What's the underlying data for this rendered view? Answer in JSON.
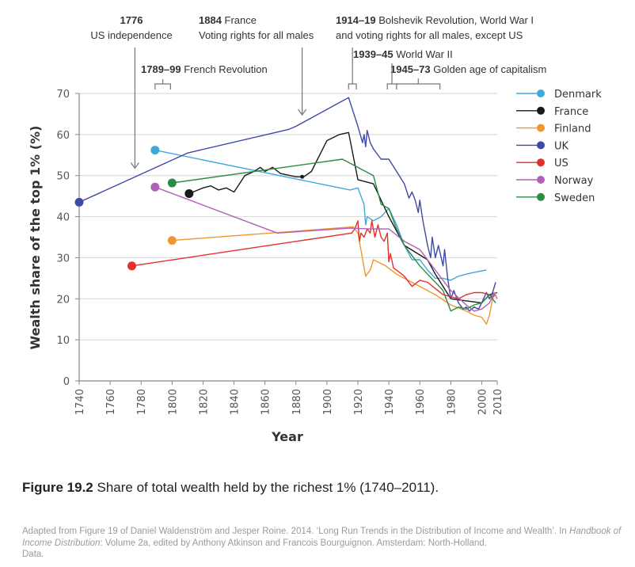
{
  "chart_data": {
    "type": "line",
    "title": "",
    "xlabel": "Year",
    "ylabel": "Wealth share of the top 1% (%)",
    "xlim": [
      1740,
      2010
    ],
    "ylim": [
      0,
      70
    ],
    "x_ticks": [
      "1740",
      "1760",
      "1780",
      "1800",
      "1820",
      "1840",
      "1860",
      "1880",
      "1900",
      "1920",
      "1940",
      "1960",
      "1980",
      "2000",
      "2010"
    ],
    "y_ticks": [
      "0",
      "10",
      "20",
      "30",
      "40",
      "50",
      "60",
      "70"
    ],
    "grid": "horizontal",
    "legend_position": "right",
    "annotations": [
      {
        "id": "us-independence",
        "bold": "1776",
        "text": "US independence",
        "year": 1776,
        "type": "arrow"
      },
      {
        "id": "france-voting",
        "bold": "1884 France",
        "text": "Voting rights for all males",
        "year": 1884,
        "type": "arrow"
      },
      {
        "id": "bolshevik",
        "bold": "1914–19",
        "text": "Bolshevik Revolution, World War I",
        "line2": "and voting rights for all males, except US",
        "range": [
          1914,
          1919
        ],
        "type": "bracket"
      },
      {
        "id": "french-revolution",
        "bold": "1789–99",
        "text": "French Revolution",
        "range": [
          1789,
          1799
        ],
        "type": "bracket"
      },
      {
        "id": "ww2",
        "bold": "1939–45",
        "text": "World War II",
        "range": [
          1939,
          1945
        ],
        "type": "bracket"
      },
      {
        "id": "golden-age",
        "bold": "1945–73",
        "text": "Golden age of capitalism",
        "range": [
          1945,
          1973
        ],
        "type": "bracket"
      }
    ],
    "series": [
      {
        "name": "Denmark",
        "color": "#3fa9dc",
        "points": [
          [
            1789,
            56.2
          ],
          [
            1915,
            46.5
          ],
          [
            1920,
            47
          ],
          [
            1924,
            43
          ],
          [
            1925,
            38
          ],
          [
            1926,
            40
          ],
          [
            1930,
            39
          ],
          [
            1935,
            40
          ],
          [
            1940,
            42
          ],
          [
            1945,
            38
          ],
          [
            1950,
            33
          ],
          [
            1955,
            29.5
          ],
          [
            1960,
            29.5
          ],
          [
            1965,
            27
          ],
          [
            1970,
            25
          ],
          [
            1975,
            25
          ],
          [
            1980,
            24.5
          ],
          [
            1985,
            25.5
          ],
          [
            1990,
            26
          ],
          [
            1996,
            26.5
          ],
          [
            2003,
            27
          ]
        ]
      },
      {
        "name": "France",
        "color": "#1a1a1a",
        "points": [
          [
            1811,
            45.6
          ],
          [
            1820,
            47
          ],
          [
            1825,
            47.5
          ],
          [
            1830,
            46.5
          ],
          [
            1835,
            47
          ],
          [
            1840,
            46
          ],
          [
            1847,
            50
          ],
          [
            1853,
            51
          ],
          [
            1857,
            52
          ],
          [
            1860,
            51
          ],
          [
            1865,
            52
          ],
          [
            1870,
            50.5
          ],
          [
            1880,
            49.7
          ],
          [
            1885,
            49.7
          ],
          [
            1890,
            51
          ],
          [
            1900,
            58.5
          ],
          [
            1908,
            60
          ],
          [
            1914,
            60.5
          ],
          [
            1920,
            49
          ],
          [
            1930,
            48
          ],
          [
            1940,
            40
          ],
          [
            1950,
            33
          ],
          [
            1965,
            29.5
          ],
          [
            1970,
            26
          ],
          [
            1975,
            23
          ],
          [
            1980,
            20
          ],
          [
            1990,
            19.5
          ],
          [
            2000,
            19
          ],
          [
            2005,
            21
          ],
          [
            2010,
            21.5
          ]
        ]
      },
      {
        "name": "Finland",
        "color": "#f0962e",
        "points": [
          [
            1800,
            34.2
          ],
          [
            1917,
            37.5
          ],
          [
            1920,
            36
          ],
          [
            1925,
            25.5
          ],
          [
            1928,
            27
          ],
          [
            1930,
            29.5
          ],
          [
            1938,
            28
          ],
          [
            1945,
            26
          ],
          [
            1950,
            25
          ],
          [
            1960,
            23
          ],
          [
            1970,
            21
          ],
          [
            1980,
            18.5
          ],
          [
            1990,
            17
          ],
          [
            1995,
            16
          ],
          [
            2000,
            15.5
          ],
          [
            2003,
            13.8
          ],
          [
            2005,
            16
          ],
          [
            2007,
            20
          ],
          [
            2009,
            21.5
          ]
        ]
      },
      {
        "name": "UK",
        "color": "#3f4aa6",
        "points": [
          [
            1740,
            43.5
          ],
          [
            1810,
            55.5
          ],
          [
            1875,
            61.2
          ],
          [
            1880,
            62
          ],
          [
            1914,
            69
          ],
          [
            1920,
            62
          ],
          [
            1923,
            58
          ],
          [
            1924,
            60
          ],
          [
            1925,
            57
          ],
          [
            1926,
            61
          ],
          [
            1928,
            58
          ],
          [
            1930,
            56.5
          ],
          [
            1935,
            54
          ],
          [
            1940,
            54
          ],
          [
            1945,
            51
          ],
          [
            1950,
            48
          ],
          [
            1953,
            44.5
          ],
          [
            1955,
            46
          ],
          [
            1957,
            44
          ],
          [
            1959,
            41
          ],
          [
            1960,
            44
          ],
          [
            1962,
            39
          ],
          [
            1965,
            33
          ],
          [
            1967,
            30
          ],
          [
            1968,
            35
          ],
          [
            1970,
            30
          ],
          [
            1972,
            33
          ],
          [
            1975,
            28
          ],
          [
            1976,
            32
          ],
          [
            1978,
            25
          ],
          [
            1980,
            20
          ],
          [
            1982,
            22
          ],
          [
            1985,
            19
          ],
          [
            1988,
            17.5
          ],
          [
            1990,
            18
          ],
          [
            1992,
            17
          ],
          [
            1995,
            18
          ],
          [
            1998,
            17.5
          ],
          [
            2000,
            19
          ],
          [
            2003,
            21.5
          ],
          [
            2005,
            20
          ],
          [
            2007,
            21.5
          ],
          [
            2009,
            24
          ]
        ]
      },
      {
        "name": "US",
        "color": "#e3302b",
        "points": [
          [
            1774,
            28
          ],
          [
            1916,
            36
          ],
          [
            1918,
            37
          ],
          [
            1920,
            39
          ],
          [
            1921,
            34
          ],
          [
            1922,
            36
          ],
          [
            1924,
            35
          ],
          [
            1926,
            37
          ],
          [
            1928,
            36
          ],
          [
            1929,
            39
          ],
          [
            1931,
            35
          ],
          [
            1933,
            38
          ],
          [
            1935,
            35
          ],
          [
            1937,
            34
          ],
          [
            1939,
            36
          ],
          [
            1940,
            29
          ],
          [
            1941,
            31
          ],
          [
            1943,
            27.5
          ],
          [
            1945,
            27
          ],
          [
            1950,
            25.5
          ],
          [
            1955,
            23
          ],
          [
            1960,
            24.5
          ],
          [
            1965,
            24
          ],
          [
            1970,
            22.5
          ],
          [
            1975,
            21
          ],
          [
            1980,
            20.5
          ],
          [
            1985,
            20
          ],
          [
            1990,
            21
          ],
          [
            1995,
            21.5
          ],
          [
            2000,
            21.5
          ],
          [
            2005,
            21
          ],
          [
            2007,
            20.5
          ],
          [
            2009,
            21
          ]
        ]
      },
      {
        "name": "Norway",
        "color": "#b25fb8",
        "points": [
          [
            1789,
            47.2
          ],
          [
            1868,
            36
          ],
          [
            1915,
            37.2
          ],
          [
            1928,
            37
          ],
          [
            1930,
            37
          ],
          [
            1940,
            37
          ],
          [
            1950,
            34
          ],
          [
            1960,
            32
          ],
          [
            1970,
            27
          ],
          [
            1980,
            22
          ],
          [
            1990,
            18.5
          ],
          [
            1995,
            17
          ],
          [
            2000,
            17.5
          ],
          [
            2005,
            19
          ],
          [
            2008,
            21.5
          ],
          [
            2010,
            20
          ]
        ]
      },
      {
        "name": "Sweden",
        "color": "#2d8b45",
        "points": [
          [
            1800,
            48.2
          ],
          [
            1910,
            54
          ],
          [
            1930,
            50
          ],
          [
            1935,
            43
          ],
          [
            1940,
            42
          ],
          [
            1945,
            37
          ],
          [
            1950,
            33
          ],
          [
            1960,
            28
          ],
          [
            1965,
            26
          ],
          [
            1970,
            24
          ],
          [
            1975,
            22
          ],
          [
            1980,
            17
          ],
          [
            1985,
            18
          ],
          [
            1990,
            17.5
          ],
          [
            1995,
            18.5
          ],
          [
            2000,
            19
          ],
          [
            2005,
            21
          ],
          [
            2007,
            20
          ],
          [
            2009,
            19
          ]
        ]
      }
    ]
  },
  "caption": {
    "label": "Figure 19.2",
    "text": " Share of total wealth held by the richest 1% (1740–2011)."
  },
  "source": {
    "line1": "Adapted from Figure 19 of Daniel Waldenström and Jesper Roine. 2014. ‘Long Run Trends in the Distribution of Income and Wealth’. In ",
    "italic": "Handbook of Income Distribution",
    "line2": ": Volume 2a, edited by Anthony Atkinson and Francois Bourguignon. Amsterdam: North-Holland.",
    "line3": "Data."
  }
}
